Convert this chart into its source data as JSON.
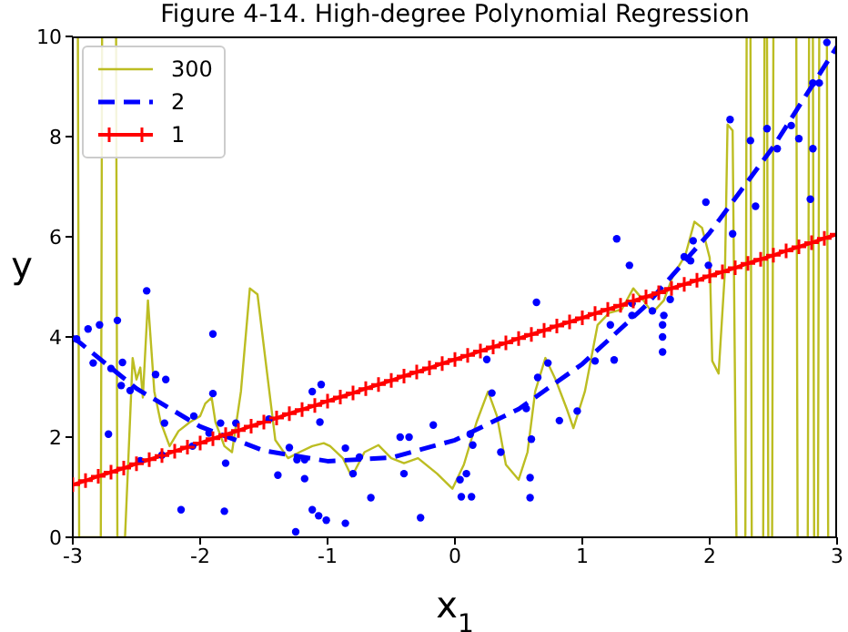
{
  "chart_data": {
    "type": "line",
    "title": "Figure 4-14. High-degree Polynomial Regression",
    "xlabel": "x$_{1}$",
    "ylabel": "y",
    "xlim": [
      -3,
      3
    ],
    "xticks": [
      -3,
      -2,
      -1,
      0,
      1,
      2,
      3
    ],
    "ylim": [
      0,
      10
    ],
    "yticks": [
      0,
      2,
      4,
      6,
      8,
      10
    ],
    "grid": false,
    "legend": "top left",
    "series": [
      {
        "type": "scatter",
        "color": "#0000ff",
        "marker": "circle",
        "x": [
          -2.97,
          -2.88,
          -2.79,
          -2.84,
          -2.65,
          -2.61,
          -2.72,
          -2.42,
          -2.7,
          -2.62,
          -2.55,
          -2.35,
          -2.27,
          -2.28,
          -2.47,
          -2.3,
          -2.05,
          -2.06,
          -1.9,
          -1.9,
          -1.93,
          -1.84,
          -1.72,
          -1.8,
          -2.15,
          -1.81,
          -1.46,
          -1.39,
          -1.3,
          -1.24,
          -1.18,
          -1.18,
          -1.12,
          -1.07,
          -1.25,
          -1.12,
          -1.06,
          -1.05,
          -0.86,
          -0.75,
          -0.8,
          -0.66,
          -1.01,
          -0.86,
          -0.43,
          -0.36,
          -0.4,
          -0.17,
          -0.27,
          0.04,
          0.05,
          0.09,
          0.13,
          0.12,
          0.14,
          0.25,
          0.29,
          0.36,
          0.56,
          0.6,
          0.59,
          0.59,
          0.65,
          0.73,
          0.82,
          0.96,
          0.64,
          1.1,
          1.25,
          1.22,
          1.27,
          1.37,
          1.39,
          1.39,
          1.55,
          1.63,
          1.64,
          1.63,
          1.63,
          1.69,
          1.8,
          1.85,
          1.87,
          1.97,
          1.99,
          2.16,
          2.18,
          2.32,
          2.36,
          2.45,
          2.53,
          2.64,
          2.7,
          2.81,
          2.79,
          2.81,
          2.86,
          2.92
        ],
        "values": [
          3.96,
          4.16,
          4.24,
          3.48,
          4.33,
          3.49,
          2.06,
          4.92,
          3.37,
          3.03,
          2.93,
          3.25,
          3.15,
          2.28,
          1.53,
          1.64,
          2.42,
          1.82,
          4.06,
          2.87,
          2.08,
          2.28,
          2.28,
          1.48,
          0.55,
          0.52,
          2.36,
          1.24,
          1.79,
          1.55,
          1.55,
          1.17,
          0.55,
          0.43,
          0.11,
          2.91,
          2.3,
          3.05,
          1.78,
          1.6,
          1.27,
          0.79,
          0.34,
          0.28,
          2.0,
          2.0,
          1.27,
          2.24,
          0.39,
          1.15,
          0.81,
          1.27,
          0.81,
          2.06,
          1.84,
          3.55,
          2.88,
          1.7,
          2.57,
          1.96,
          1.19,
          0.79,
          3.19,
          3.48,
          2.33,
          2.52,
          4.69,
          3.52,
          3.54,
          4.24,
          5.96,
          5.43,
          4.43,
          4.67,
          4.52,
          4.24,
          4.43,
          4.0,
          3.7,
          4.75,
          5.6,
          5.52,
          5.92,
          6.69,
          5.43,
          8.34,
          6.06,
          7.92,
          6.61,
          8.16,
          7.76,
          8.22,
          7.96,
          7.76,
          6.75,
          9.07,
          9.07,
          9.88
        ]
      },
      {
        "name": "300",
        "color": "#bcbd22",
        "line_style": "solid",
        "marker": "none",
        "x": [
          -2.99,
          -2.96,
          -2.95,
          -2.78,
          -2.77,
          -2.66,
          -2.65,
          -2.59,
          -2.53,
          -2.5,
          -2.47,
          -2.45,
          -2.41,
          -2.36,
          -2.31,
          -2.24,
          -2.17,
          -2.08,
          -2.0,
          -1.96,
          -1.91,
          -1.88,
          -1.81,
          -1.75,
          -1.68,
          -1.61,
          -1.55,
          -1.48,
          -1.41,
          -1.31,
          -1.22,
          -1.12,
          -1.03,
          -0.98,
          -0.88,
          -0.81,
          -0.71,
          -0.6,
          -0.5,
          -0.4,
          -0.29,
          -0.14,
          -0.02,
          0.07,
          0.17,
          0.26,
          0.33,
          0.4,
          0.5,
          0.57,
          0.63,
          0.71,
          0.79,
          0.88,
          0.93,
          1.02,
          1.12,
          1.21,
          1.31,
          1.4,
          1.48,
          1.55,
          1.64,
          1.71,
          1.81,
          1.88,
          1.94,
          2.0,
          2.02,
          2.07,
          2.12,
          2.14,
          2.18,
          2.21,
          2.28,
          2.29,
          2.32,
          2.33,
          2.42,
          2.43,
          2.45,
          2.46,
          2.49,
          2.5,
          2.68,
          2.69,
          2.77,
          2.78,
          2.81,
          2.82,
          2.85,
          2.86,
          2.92,
          2.93,
          2.95
        ],
        "values": [
          10,
          10,
          0,
          0,
          10,
          10,
          0,
          0,
          3.58,
          3.15,
          3.39,
          2.79,
          4.73,
          2.91,
          2.3,
          1.82,
          2.12,
          2.3,
          2.42,
          2.67,
          2.79,
          2.3,
          1.82,
          1.7,
          2.91,
          4.97,
          4.85,
          3.39,
          1.94,
          1.58,
          1.7,
          1.82,
          1.88,
          1.82,
          1.58,
          1.21,
          1.7,
          1.84,
          1.58,
          1.48,
          1.58,
          1.27,
          0.97,
          1.45,
          2.3,
          2.91,
          2.42,
          1.45,
          1.15,
          1.7,
          2.91,
          3.58,
          3.15,
          2.55,
          2.18,
          2.91,
          4.24,
          4.48,
          4.55,
          4.97,
          4.73,
          4.48,
          4.73,
          5.21,
          5.64,
          6.3,
          6.18,
          5.58,
          3.52,
          3.27,
          5.33,
          8.24,
          8.12,
          0,
          0,
          10,
          10,
          0,
          0,
          10,
          10,
          0,
          0,
          10,
          10,
          0,
          0,
          10,
          10,
          0,
          0,
          10,
          10,
          0,
          0
        ]
      },
      {
        "name": "2",
        "color": "#0000ff",
        "line_style": "dashed",
        "marker": "none",
        "x": [
          -3,
          -2.5,
          -2,
          -1.5,
          -1,
          -0.5,
          0,
          0.5,
          1,
          1.5,
          2,
          2.5,
          3
        ],
        "values": [
          4.0,
          2.97,
          2.21,
          1.73,
          1.52,
          1.59,
          1.94,
          2.56,
          3.46,
          4.63,
          6.08,
          7.8,
          9.8
        ]
      },
      {
        "name": "1",
        "color": "#ff0000",
        "line_style": "solid",
        "marker": "cross",
        "x": [
          -3,
          -2.9,
          -2.8,
          -2.7,
          -2.6,
          -2.5,
          -2.4,
          -2.3,
          -2.2,
          -2.1,
          -2,
          -1.9,
          -1.8,
          -1.7,
          -1.6,
          -1.5,
          -1.4,
          -1.3,
          -1.2,
          -1.1,
          -1,
          -0.9,
          -0.8,
          -0.7,
          -0.6,
          -0.5,
          -0.4,
          -0.3,
          -0.2,
          -0.1,
          0,
          0.1,
          0.2,
          0.3,
          0.4,
          0.5,
          0.6,
          0.7,
          0.8,
          0.9,
          1,
          1.1,
          1.2,
          1.3,
          1.4,
          1.5,
          1.6,
          1.7,
          1.8,
          1.9,
          2,
          2.1,
          2.2,
          2.3,
          2.4,
          2.5,
          2.6,
          2.7,
          2.8,
          2.9,
          3
        ],
        "values": [
          1.05,
          1.13,
          1.22,
          1.3,
          1.38,
          1.47,
          1.55,
          1.63,
          1.72,
          1.8,
          1.88,
          1.97,
          2.05,
          2.13,
          2.22,
          2.3,
          2.38,
          2.47,
          2.55,
          2.63,
          2.72,
          2.8,
          2.88,
          2.97,
          3.05,
          3.13,
          3.22,
          3.3,
          3.38,
          3.47,
          3.55,
          3.63,
          3.72,
          3.8,
          3.88,
          3.97,
          4.05,
          4.13,
          4.22,
          4.3,
          4.38,
          4.47,
          4.55,
          4.63,
          4.72,
          4.8,
          4.88,
          4.97,
          5.05,
          5.13,
          5.22,
          5.3,
          5.38,
          5.47,
          5.55,
          5.63,
          5.72,
          5.8,
          5.88,
          5.97,
          6.05
        ]
      }
    ]
  }
}
